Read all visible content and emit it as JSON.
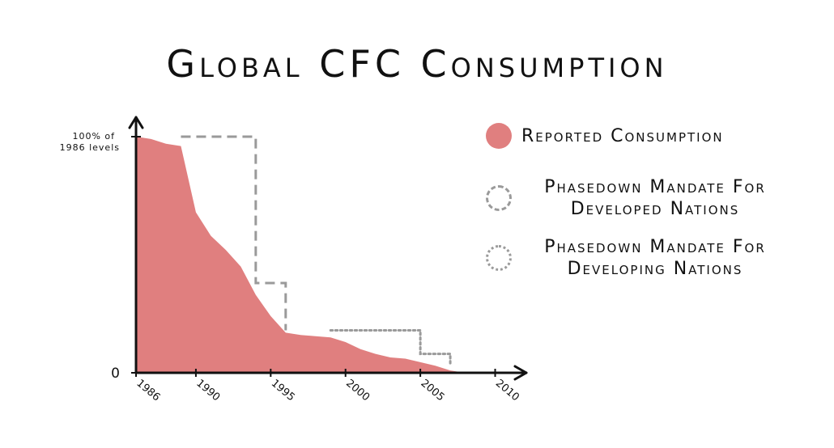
{
  "chart_data": {
    "type": "area",
    "title": "Global CFC Consumption",
    "xlabel": "",
    "ylabel": "",
    "xlim": [
      1986,
      2011
    ],
    "ylim": [
      0,
      100
    ],
    "x_ticks": [
      1986,
      1990,
      1995,
      2000,
      2005,
      2010
    ],
    "y_ticks": [
      {
        "value": 0,
        "label": "0"
      },
      {
        "value": 100,
        "label": "100% of\n1986 levels"
      }
    ],
    "grid": false,
    "legend_position": "right",
    "series": [
      {
        "name": "Reported Consumption",
        "style": "filled-area",
        "color": "#e07f7f",
        "x": [
          1986,
          1987,
          1988,
          1989,
          1990,
          1991,
          1992,
          1993,
          1994,
          1995,
          1996,
          1997,
          1998,
          1999,
          2000,
          2001,
          2002,
          2003,
          2004,
          2005,
          2006,
          2007,
          2008
        ],
        "y": [
          100,
          99,
          97,
          96,
          68,
          58,
          52,
          45,
          33,
          24,
          17,
          16,
          15.5,
          15,
          13,
          10,
          8,
          6.5,
          6,
          4.5,
          3,
          1,
          0
        ]
      },
      {
        "name": "Phasedown Mandate For Developed Nations",
        "style": "dashed",
        "color": "#9a9a9a",
        "x": [
          1989,
          1994,
          1994,
          1996,
          1996
        ],
        "y": [
          100,
          100,
          38,
          38,
          18
        ]
      },
      {
        "name": "Phasedown Mandate For Developing Nations",
        "style": "dotted",
        "color": "#9a9a9a",
        "x": [
          1999,
          2005,
          2005,
          2007,
          2007
        ],
        "y": [
          18,
          18,
          8,
          8,
          3
        ]
      }
    ]
  }
}
